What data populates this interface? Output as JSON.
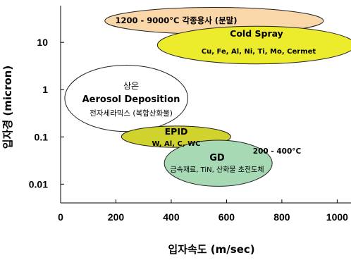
{
  "chart_data": {
    "type": "scatter",
    "xlabel": "입자속도 (m/sec)",
    "ylabel": "입자경 (micron)",
    "xlim": [
      0,
      1050
    ],
    "ylim": [
      0.004,
      60
    ],
    "y_scale": "log",
    "grid": false,
    "x_ticks": [
      0,
      200,
      400,
      600,
      800,
      1000
    ],
    "y_ticks": [
      {
        "value": 0.01,
        "label": "0.01"
      },
      {
        "value": 0.1,
        "label": "0.1"
      },
      {
        "value": 1,
        "label": "1"
      },
      {
        "value": 10,
        "label": "10"
      }
    ],
    "regions": [
      {
        "key": "thermal",
        "lines": [
          "1200 - 9000°C 각종용사 (분말)"
        ],
        "x_range": [
          160,
          950
        ],
        "y_range": [
          15,
          55
        ],
        "fill": "#f9d7a8"
      },
      {
        "key": "cold_spray",
        "lines": [
          "Cold Spray",
          "Cu, Fe, Al, Ni, Ti, Mo, Cermet"
        ],
        "x_range": [
          350,
          1065
        ],
        "y_range": [
          3.5,
          22
        ],
        "fill": "#ecec2c"
      },
      {
        "key": "aerosol",
        "lines": [
          "상온",
          "Aerosol Deposition",
          "전자세라믹스 (복합산화물)"
        ],
        "x_range": [
          15,
          460
        ],
        "y_range": [
          0.13,
          3.3
        ],
        "fill": "#ffffff"
      },
      {
        "key": "epid",
        "lines": [
          "EPID",
          "W, Al, C, WC"
        ],
        "x_range": [
          220,
          615
        ],
        "y_range": [
          0.06,
          0.17
        ],
        "fill": "#d0d22e"
      },
      {
        "key": "gd",
        "lines": [
          "GD",
          "200 - 400°C",
          "금속재료, TiN, 산화물 초전도체"
        ],
        "x_range": [
          375,
          765
        ],
        "y_range": [
          0.009,
          0.085
        ],
        "fill": "#a7d9b5"
      }
    ]
  }
}
